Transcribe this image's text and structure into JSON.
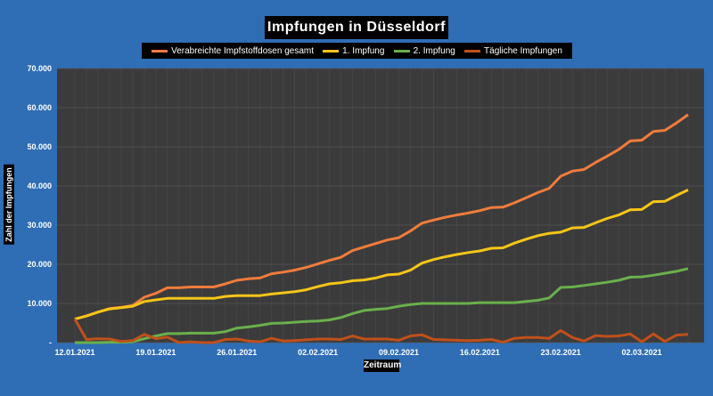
{
  "chart_data": {
    "type": "line",
    "title": "Impfungen in Düsseldorf",
    "xlabel": "Zeitraum",
    "ylabel": "Zahl der Impfungen",
    "ylim": [
      0,
      70000
    ],
    "ytick_labels": [
      "-",
      "10.000",
      "20.000",
      "30.000",
      "40.000",
      "50.000",
      "60.000",
      "70.000"
    ],
    "xtick_labels": [
      "12.01.2021",
      "19.01.2021",
      "26.01.2021",
      "02.02.2021",
      "09.02.2021",
      "16.02.2021",
      "23.02.2021",
      "02.03.2021"
    ],
    "grid": true,
    "legend_position": "top",
    "series": [
      {
        "name": "Verabreichte Impfstoffdosen gesamt",
        "color": "#f07c3c",
        "values": [
          6000,
          6800,
          7800,
          8700,
          9000,
          9500,
          11600,
          12600,
          14000,
          14000,
          14200,
          14200,
          14200,
          15000,
          15900,
          16300,
          16500,
          17600,
          18000,
          18500,
          19200,
          20100,
          21000,
          21800,
          23500,
          24400,
          25300,
          26200,
          26800,
          28500,
          30500,
          31300,
          32000,
          32600,
          33100,
          33700,
          34500,
          34600,
          35700,
          37000,
          38300,
          39400,
          42500,
          43800,
          44200,
          46000,
          47600,
          49300,
          51500,
          51700,
          53900,
          54200,
          56100,
          58200
        ]
      },
      {
        "name": "1. Impfung",
        "color": "#f5c518",
        "values": [
          6000,
          6800,
          7800,
          8600,
          8900,
          9300,
          10500,
          10900,
          11300,
          11300,
          11300,
          11300,
          11300,
          11800,
          12000,
          12000,
          12000,
          12400,
          12700,
          13000,
          13500,
          14300,
          15000,
          15300,
          15800,
          16000,
          16500,
          17300,
          17500,
          18500,
          20300,
          21200,
          21900,
          22500,
          23000,
          23400,
          24100,
          24200,
          25400,
          26400,
          27300,
          27900,
          28200,
          29300,
          29400,
          30600,
          31700,
          32600,
          33900,
          34000,
          36000,
          36100,
          37600,
          39000
        ]
      },
      {
        "name": "2. Impfung",
        "color": "#6ab04c",
        "values": [
          0,
          0,
          0,
          100,
          100,
          200,
          1000,
          1700,
          2300,
          2300,
          2400,
          2400,
          2400,
          2800,
          3700,
          4000,
          4400,
          4900,
          5000,
          5200,
          5400,
          5500,
          5800,
          6400,
          7400,
          8200,
          8500,
          8700,
          9300,
          9700,
          10000,
          10000,
          10000,
          10000,
          10000,
          10200,
          10200,
          10200,
          10200,
          10500,
          10800,
          11400,
          14100,
          14200,
          14600,
          15000,
          15400,
          15900,
          16700,
          16800,
          17200,
          17700,
          18200,
          18900
        ]
      },
      {
        "name": "Tägliche Impfungen",
        "color": "#c0501a",
        "values": [
          6000,
          800,
          1000,
          900,
          300,
          500,
          2100,
          1000,
          1400,
          0,
          200,
          0,
          0,
          800,
          900,
          400,
          200,
          1100,
          400,
          500,
          700,
          900,
          900,
          800,
          1700,
          900,
          900,
          900,
          600,
          1700,
          2000,
          800,
          700,
          600,
          500,
          600,
          800,
          100,
          1100,
          1300,
          1300,
          1100,
          3100,
          1300,
          400,
          1800,
          1600,
          1700,
          2200,
          200,
          2200,
          300,
          1900,
          2100
        ]
      }
    ]
  }
}
